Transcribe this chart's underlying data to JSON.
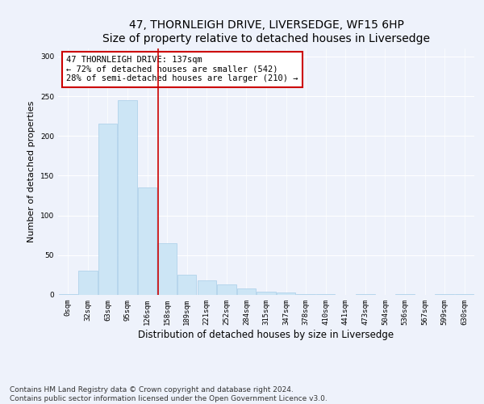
{
  "title": "47, THORNLEIGH DRIVE, LIVERSEDGE, WF15 6HP",
  "subtitle": "Size of property relative to detached houses in Liversedge",
  "xlabel": "Distribution of detached houses by size in Liversedge",
  "ylabel": "Number of detached properties",
  "bar_color": "#cce5f5",
  "bar_edge_color": "#a8cde8",
  "background_color": "#eef2fb",
  "grid_color": "#ffffff",
  "categories": [
    "0sqm",
    "32sqm",
    "63sqm",
    "95sqm",
    "126sqm",
    "158sqm",
    "189sqm",
    "221sqm",
    "252sqm",
    "284sqm",
    "315sqm",
    "347sqm",
    "378sqm",
    "410sqm",
    "441sqm",
    "473sqm",
    "504sqm",
    "536sqm",
    "567sqm",
    "599sqm",
    "630sqm"
  ],
  "values": [
    1,
    30,
    215,
    245,
    135,
    65,
    25,
    18,
    13,
    8,
    4,
    3,
    1,
    1,
    0,
    1,
    0,
    1,
    0,
    1,
    1
  ],
  "ylim": [
    0,
    310
  ],
  "yticks": [
    0,
    50,
    100,
    150,
    200,
    250,
    300
  ],
  "property_line_x": 4.55,
  "annotation_text": "47 THORNLEIGH DRIVE: 137sqm\n← 72% of detached houses are smaller (542)\n28% of semi-detached houses are larger (210) →",
  "annotation_box_color": "#ffffff",
  "annotation_border_color": "#cc0000",
  "line_color": "#cc0000",
  "footer_line1": "Contains HM Land Registry data © Crown copyright and database right 2024.",
  "footer_line2": "Contains public sector information licensed under the Open Government Licence v3.0.",
  "title_fontsize": 10,
  "subtitle_fontsize": 9,
  "xlabel_fontsize": 8.5,
  "ylabel_fontsize": 8,
  "tick_fontsize": 6.5,
  "footer_fontsize": 6.5,
  "annotation_fontsize": 7.5
}
